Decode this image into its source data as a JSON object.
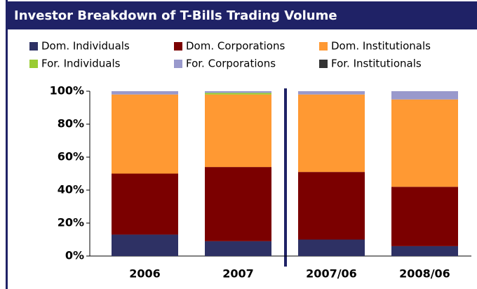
{
  "chart_data": {
    "type": "stacked_bar",
    "title": "Investor Breakdown of T-Bills Trading Volume",
    "categories": [
      "2006",
      "2007",
      "2007/06",
      "2008/06"
    ],
    "series": [
      {
        "name": "Dom. Individuals",
        "color": "#2e3164",
        "values": [
          13,
          9,
          10,
          6
        ]
      },
      {
        "name": "Dom. Corporations",
        "color": "#7b0000",
        "values": [
          37,
          45,
          41,
          36
        ]
      },
      {
        "name": "Dom. Institutionals",
        "color": "#ff9933",
        "values": [
          48,
          44,
          47,
          53
        ]
      },
      {
        "name": "For. Individuals",
        "color": "#99cc33",
        "values": [
          0,
          1,
          0,
          0
        ]
      },
      {
        "name": "For. Corporations",
        "color": "#9999cc",
        "values": [
          2,
          1,
          2,
          5
        ]
      },
      {
        "name": "For. Institutionals",
        "color": "#333333",
        "values": [
          0,
          0,
          0,
          0
        ]
      }
    ],
    "ylim": [
      0,
      100
    ],
    "yticks": [
      {
        "value": 0,
        "label": "0%"
      },
      {
        "value": 20,
        "label": "20%"
      },
      {
        "value": 40,
        "label": "40%"
      },
      {
        "value": 60,
        "label": "60%"
      },
      {
        "value": 80,
        "label": "80%"
      },
      {
        "value": 100,
        "label": "100%"
      }
    ]
  }
}
